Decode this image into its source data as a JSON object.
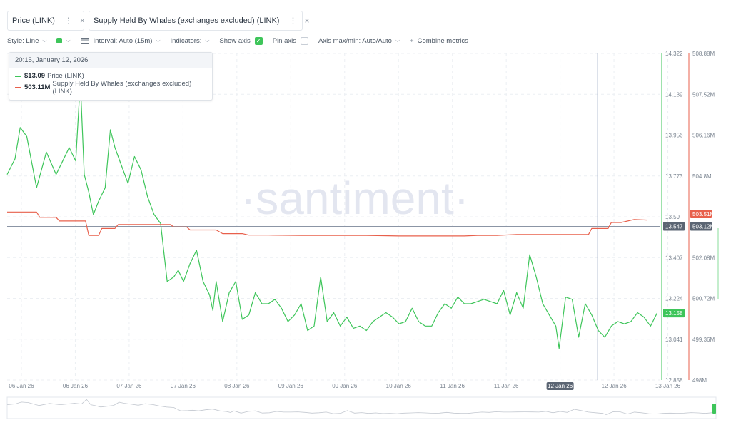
{
  "metric_tabs": [
    {
      "label": "Price (LINK)",
      "color": "#3ec55a"
    },
    {
      "label": "Supply Held By Whales (exchanges excluded) (LINK)",
      "color": "#e8604c"
    }
  ],
  "toolbar": {
    "style_label": "Style: Line",
    "interval_label": "Interval: Auto (15m)",
    "indicators_label": "Indicators:",
    "show_axis_label": "Show axis",
    "pin_axis_label": "Pin axis",
    "axis_minmax_label": "Axis max/min: Auto/Auto",
    "combine_label": "Combine metrics"
  },
  "tooltip": {
    "date": "20:15, January 12, 2026",
    "rows": [
      {
        "value": "$13.09",
        "name": "Price (LINK)",
        "color": "#3ec55a"
      },
      {
        "value": "503.11M",
        "name": "Supply Held By Whales (exchanges excluded) (LINK)",
        "color": "#e8604c"
      }
    ]
  },
  "watermark": "·santiment·",
  "chart_data": {
    "type": "line",
    "x_tick_labels": [
      "06 Jan 26",
      "06 Jan 26",
      "07 Jan 26",
      "07 Jan 26",
      "08 Jan 26",
      "09 Jan 26",
      "09 Jan 26",
      "10 Jan 26",
      "11 Jan 26",
      "11 Jan 26",
      "12 Jan 26",
      "12 Jan 26",
      "13 Jan 26"
    ],
    "highlighted_x_label": "12 Jan 26",
    "price_axis": {
      "ticks": [
        "14.322",
        "14.139",
        "13.956",
        "13.773",
        "13.59",
        "13.407",
        "13.224",
        "13.041",
        "12.858"
      ],
      "range": [
        12.858,
        14.322
      ],
      "current_label": "13.158",
      "crosshair_label": "13.547"
    },
    "whales_axis": {
      "ticks": [
        "508.88M",
        "507.52M",
        "506.16M",
        "504.8M",
        "502.08M",
        "500.72M",
        "499.36M",
        "498M"
      ],
      "range": [
        498.0,
        508.88
      ],
      "current_label": "503.51M",
      "crosshair_label": "503.12M"
    },
    "series": [
      {
        "name": "Price (LINK)",
        "color": "#3ec55a",
        "axis": "price",
        "x": [
          0,
          0.012,
          0.02,
          0.03,
          0.045,
          0.06,
          0.075,
          0.085,
          0.095,
          0.105,
          0.112,
          0.118,
          0.125,
          0.132,
          0.14,
          0.15,
          0.158,
          0.165,
          0.175,
          0.185,
          0.195,
          0.205,
          0.215,
          0.225,
          0.235,
          0.245,
          0.255,
          0.262,
          0.27,
          0.28,
          0.29,
          0.3,
          0.31,
          0.315,
          0.32,
          0.33,
          0.34,
          0.35,
          0.36,
          0.37,
          0.38,
          0.39,
          0.4,
          0.41,
          0.42,
          0.43,
          0.44,
          0.45,
          0.46,
          0.47,
          0.48,
          0.49,
          0.5,
          0.51,
          0.52,
          0.53,
          0.54,
          0.55,
          0.56,
          0.57,
          0.58,
          0.59,
          0.6,
          0.61,
          0.62,
          0.63,
          0.64,
          0.65,
          0.66,
          0.67,
          0.68,
          0.69,
          0.7,
          0.71,
          0.72,
          0.73,
          0.74,
          0.75,
          0.76,
          0.77,
          0.78,
          0.79,
          0.8,
          0.81,
          0.82,
          0.83,
          0.84,
          0.845,
          0.855,
          0.865,
          0.875,
          0.885,
          0.895,
          0.905,
          0.915,
          0.925,
          0.935,
          0.945,
          0.955,
          0.965,
          0.975,
          0.985,
          0.995
        ],
        "y": [
          13.78,
          13.85,
          13.99,
          13.95,
          13.72,
          13.88,
          13.78,
          13.84,
          13.9,
          13.84,
          14.2,
          13.78,
          13.7,
          13.6,
          13.66,
          13.72,
          13.98,
          13.9,
          13.82,
          13.74,
          13.86,
          13.8,
          13.68,
          13.6,
          13.56,
          13.3,
          13.32,
          13.35,
          13.3,
          13.38,
          13.44,
          13.3,
          13.24,
          13.17,
          13.3,
          13.12,
          13.25,
          13.3,
          13.13,
          13.15,
          13.25,
          13.2,
          13.2,
          13.22,
          13.18,
          13.12,
          13.15,
          13.2,
          13.08,
          13.1,
          13.32,
          13.12,
          13.16,
          13.1,
          13.14,
          13.09,
          13.1,
          13.08,
          13.12,
          13.14,
          13.16,
          13.14,
          13.11,
          13.12,
          13.18,
          13.12,
          13.1,
          13.1,
          13.16,
          13.2,
          13.18,
          13.23,
          13.2,
          13.2,
          13.21,
          13.22,
          13.21,
          13.2,
          13.26,
          13.15,
          13.25,
          13.18,
          13.42,
          13.32,
          13.2,
          13.15,
          13.1,
          13.0,
          13.23,
          13.22,
          13.05,
          13.2,
          13.15,
          13.08,
          13.05,
          13.1,
          13.12,
          13.11,
          13.12,
          13.16,
          13.14,
          13.1,
          13.158
        ]
      },
      {
        "name": "Supply Held By Whales (exchanges excluded) (LINK)",
        "color": "#e8604c",
        "axis": "whales",
        "x": [
          0,
          0.045,
          0.05,
          0.075,
          0.08,
          0.12,
          0.125,
          0.14,
          0.145,
          0.165,
          0.17,
          0.25,
          0.255,
          0.275,
          0.28,
          0.32,
          0.33,
          0.36,
          0.37,
          0.4,
          0.45,
          0.5,
          0.55,
          0.6,
          0.65,
          0.7,
          0.72,
          0.75,
          0.78,
          0.8,
          0.83,
          0.89,
          0.895,
          0.92,
          0.925,
          0.94,
          0.96,
          0.98
        ],
        "y": [
          503.6,
          503.6,
          503.42,
          503.42,
          503.3,
          503.3,
          502.82,
          502.82,
          503.05,
          503.05,
          503.18,
          503.18,
          503.1,
          503.1,
          503.0,
          503.0,
          502.88,
          502.88,
          502.83,
          502.83,
          502.82,
          502.82,
          502.82,
          502.8,
          502.8,
          502.8,
          502.82,
          502.82,
          502.85,
          502.85,
          502.85,
          502.85,
          503.05,
          503.05,
          503.25,
          503.25,
          503.35,
          503.33
        ]
      }
    ]
  }
}
